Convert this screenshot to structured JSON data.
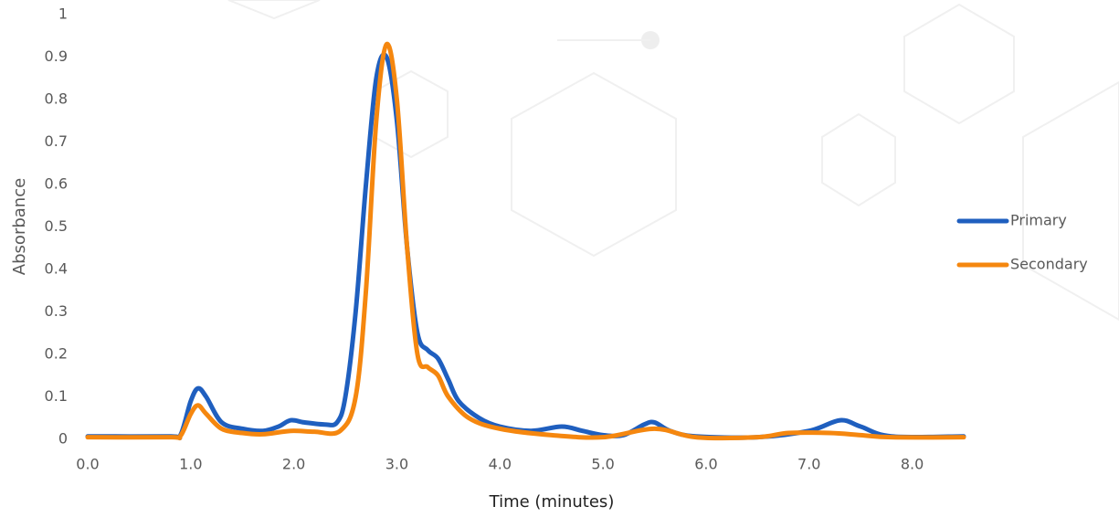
{
  "chart_data": {
    "type": "line",
    "x_label": "Time (minutes)",
    "y_label": "Absorbance",
    "xlim": [
      0,
      8.5
    ],
    "ylim": [
      0,
      1
    ],
    "xticks": [
      {
        "value": 0,
        "label": "0.0"
      },
      {
        "value": 1,
        "label": "1.0"
      },
      {
        "value": 2,
        "label": "2.0"
      },
      {
        "value": 3,
        "label": "3.0"
      },
      {
        "value": 4,
        "label": "4.0"
      },
      {
        "value": 5,
        "label": "5.0"
      },
      {
        "value": 6,
        "label": "6.0"
      },
      {
        "value": 7,
        "label": "7.0"
      },
      {
        "value": 8,
        "label": "8.0"
      }
    ],
    "yticks": [
      0,
      0.1,
      0.2,
      0.3,
      0.4,
      0.5,
      0.6,
      0.7,
      0.8,
      0.9,
      1
    ],
    "legend": "right",
    "series": [
      {
        "name": "Primary",
        "color": "#1f5fbf",
        "x": [
          0,
          0.8,
          0.9,
          1.0,
          1.07,
          1.15,
          1.3,
          1.5,
          1.7,
          1.85,
          1.97,
          2.1,
          2.3,
          2.42,
          2.5,
          2.6,
          2.7,
          2.8,
          2.9,
          3.0,
          3.1,
          3.2,
          3.3,
          3.4,
          3.5,
          3.6,
          3.8,
          4.0,
          4.3,
          4.6,
          4.8,
          5.0,
          5.2,
          5.4,
          5.5,
          5.65,
          5.9,
          6.5,
          7.0,
          7.3,
          7.5,
          7.8,
          8.5
        ],
        "values": [
          0.007,
          0.007,
          0.01,
          0.09,
          0.12,
          0.1,
          0.04,
          0.025,
          0.02,
          0.03,
          0.045,
          0.04,
          0.035,
          0.04,
          0.1,
          0.3,
          0.6,
          0.85,
          0.9,
          0.75,
          0.45,
          0.25,
          0.21,
          0.19,
          0.14,
          0.09,
          0.05,
          0.03,
          0.02,
          0.03,
          0.02,
          0.01,
          0.01,
          0.035,
          0.04,
          0.02,
          0.007,
          0.005,
          0.02,
          0.045,
          0.03,
          0.007,
          0.007
        ]
      },
      {
        "name": "Secondary",
        "color": "#f5870f",
        "x": [
          0,
          0.8,
          0.9,
          1.0,
          1.07,
          1.15,
          1.3,
          1.5,
          1.7,
          1.97,
          2.2,
          2.45,
          2.6,
          2.7,
          2.8,
          2.9,
          3.0,
          3.1,
          3.2,
          3.3,
          3.4,
          3.5,
          3.7,
          4.0,
          4.5,
          5.0,
          5.5,
          5.9,
          6.5,
          6.8,
          7.2,
          7.5,
          7.8,
          8.5
        ],
        "values": [
          0.005,
          0.005,
          0.008,
          0.06,
          0.08,
          0.06,
          0.025,
          0.015,
          0.012,
          0.02,
          0.018,
          0.02,
          0.1,
          0.35,
          0.75,
          0.93,
          0.8,
          0.45,
          0.2,
          0.17,
          0.15,
          0.1,
          0.05,
          0.025,
          0.01,
          0.005,
          0.025,
          0.005,
          0.005,
          0.015,
          0.015,
          0.01,
          0.005,
          0.005
        ]
      }
    ]
  }
}
